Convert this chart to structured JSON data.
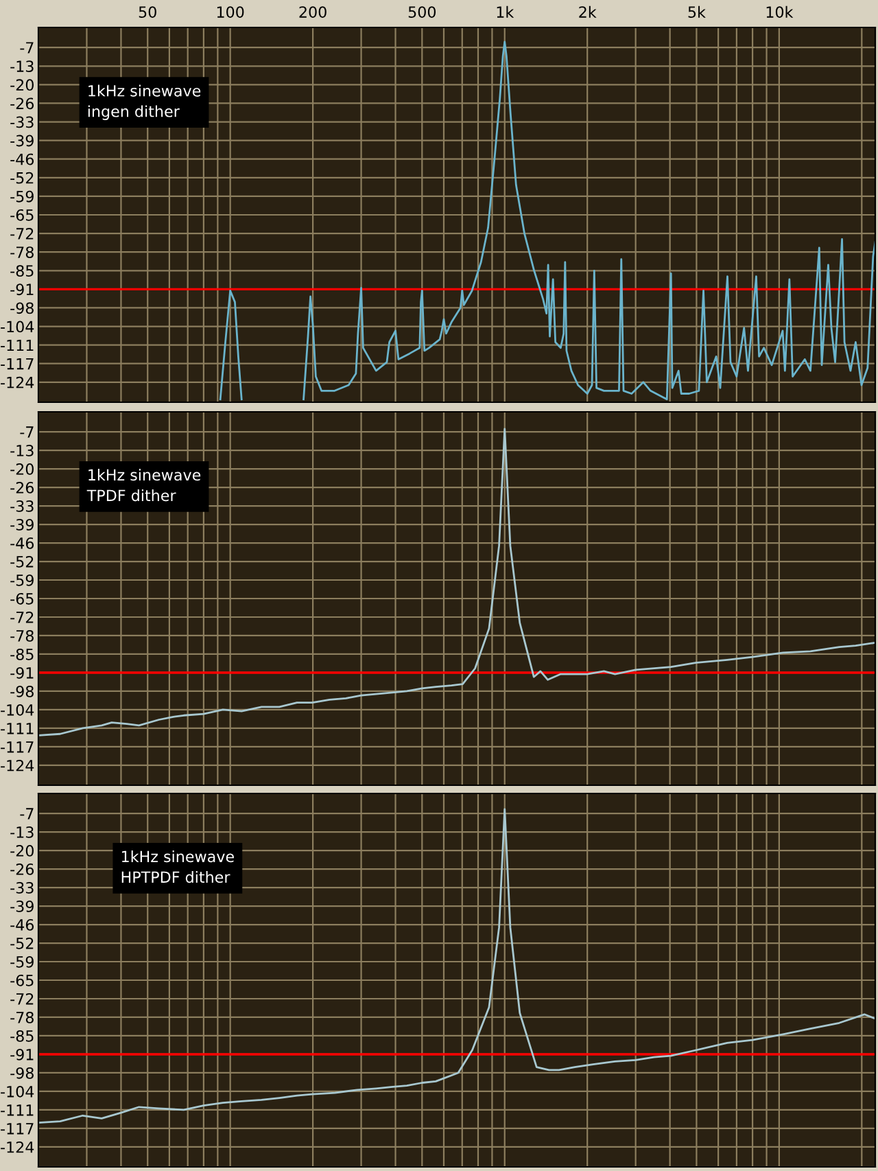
{
  "chart_data": [
    {
      "type": "line",
      "log": "x",
      "grid": true,
      "legend": false,
      "xlim": [
        20,
        22400
      ],
      "ylim": [
        -131,
        0
      ],
      "xticks": [
        {
          "value": 20,
          "label": null
        },
        {
          "value": 30,
          "label": null
        },
        {
          "value": 40,
          "label": null
        },
        50,
        {
          "value": 60,
          "label": null
        },
        {
          "value": 70,
          "label": null
        },
        {
          "value": 80,
          "label": null
        },
        {
          "value": 90,
          "label": null
        },
        100,
        200,
        {
          "value": 300,
          "label": null
        },
        {
          "value": 400,
          "label": null
        },
        500,
        {
          "value": 600,
          "label": null
        },
        {
          "value": 700,
          "label": null
        },
        {
          "value": 800,
          "label": null
        },
        {
          "value": 900,
          "label": null
        },
        {
          "value": 1000,
          "label": "1k"
        },
        {
          "value": 2000,
          "label": "2k"
        },
        {
          "value": 3000,
          "label": null
        },
        {
          "value": 4000,
          "label": null
        },
        {
          "value": 5000,
          "label": "5k"
        },
        {
          "value": 6000,
          "label": null
        },
        {
          "value": 7000,
          "label": null
        },
        {
          "value": 8000,
          "label": null
        },
        {
          "value": 9000,
          "label": null
        },
        {
          "value": 10000,
          "label": "10k"
        },
        {
          "value": 20000,
          "label": null
        }
      ],
      "yticks": [
        -7,
        {
          "value": -13.5,
          "label": "-13"
        },
        -20,
        {
          "value": -26.5,
          "label": "-26"
        },
        -33,
        {
          "value": -39.5,
          "label": "-39"
        },
        -46,
        {
          "value": -52.5,
          "label": "-52"
        },
        -59,
        {
          "value": -65.5,
          "label": "-65"
        },
        -72,
        {
          "value": -78.5,
          "label": "-78"
        },
        -85,
        {
          "value": -91.5,
          "label": "-91"
        },
        -98,
        {
          "value": -104.5,
          "label": "-104"
        },
        -111,
        {
          "value": -117.5,
          "label": "-117"
        },
        -124
      ],
      "ref_lines": [
        {
          "axis": "y",
          "value": -91.5,
          "label": null,
          "color": "#ff0000"
        }
      ],
      "annotations": [
        "1kHz sinewave\ningen dither"
      ],
      "series": [
        {
          "color": "#6ab4cc",
          "x": [
            92,
            96,
            100,
            104,
            107,
            110,
            150,
            185,
            192,
            196,
            200,
            205,
            215,
            240,
            270,
            287,
            292,
            300,
            305,
            340,
            372,
            380,
            400,
            410,
            450,
            490,
            495,
            500,
            510,
            530,
            580,
            590,
            600,
            612,
            640,
            690,
            700,
            710,
            760,
            820,
            870,
            920,
            960,
            985,
            1000,
            1015,
            1050,
            1100,
            1180,
            1280,
            1380,
            1420,
            1440,
            1460,
            1500,
            1530,
            1600,
            1640,
            1660,
            1680,
            1750,
            1850,
            2000,
            2080,
            2120,
            2160,
            2300,
            2610,
            2660,
            2710,
            2900,
            3200,
            3400,
            3900,
            4036,
            4080,
            4300,
            4400,
            4700,
            5100,
            5300,
            5450,
            5900,
            6100,
            6480,
            6650,
            7000,
            7450,
            7700,
            8250,
            8450,
            8800,
            9400,
            10300,
            10500,
            10900,
            11200,
            12400,
            13000,
            14000,
            14300,
            15100,
            15500,
            16000,
            16950,
            17300,
            18200,
            19000,
            19960,
            21000,
            22000,
            22400
          ],
          "values": [
            -130,
            -110,
            -92,
            -96,
            -115,
            -130,
            null,
            -130,
            -108,
            -94,
            -104,
            -122,
            -127,
            -127,
            -125,
            -121,
            -107,
            -91,
            -112,
            -120,
            -117,
            -110,
            -106,
            -116,
            -114,
            -112,
            -96,
            -92,
            -113,
            -112,
            -109,
            -106,
            -102,
            -107,
            -103,
            -98,
            -92,
            -97,
            -92,
            -82,
            -70,
            -45,
            -25,
            -10,
            -5,
            -10,
            -30,
            -55,
            -72,
            -85,
            -95,
            -100,
            -83,
            -108,
            -88,
            -110,
            -112,
            -107,
            -82,
            -113,
            -120,
            -125,
            -128,
            -125,
            -85,
            -126,
            -127,
            -127,
            -81,
            -127,
            -128,
            -124,
            -127,
            -130,
            -86,
            -126,
            -120,
            -128,
            -128,
            -127,
            -92,
            -124,
            -115,
            -126,
            -87,
            -117,
            -122,
            -105,
            -120,
            -87,
            -115,
            -112,
            -118,
            -106,
            -120,
            -88,
            -122,
            -116,
            -120,
            -77,
            -118,
            -83,
            -105,
            -117,
            -74,
            -110,
            -120,
            -110,
            -125,
            -119,
            -80,
            -75
          ]
        }
      ]
    },
    {
      "type": "line",
      "log": "x",
      "grid": true,
      "legend": false,
      "tick_labels": "y",
      "xlim": [
        20,
        22400
      ],
      "ylim": [
        -131,
        0
      ],
      "xticks": [
        {
          "value": 20,
          "label": null
        },
        {
          "value": 30,
          "label": null
        },
        {
          "value": 40,
          "label": null
        },
        {
          "value": 50,
          "label": null
        },
        {
          "value": 60,
          "label": null
        },
        {
          "value": 70,
          "label": null
        },
        {
          "value": 80,
          "label": null
        },
        {
          "value": 90,
          "label": null
        },
        {
          "value": 100,
          "label": null
        },
        {
          "value": 200,
          "label": null
        },
        {
          "value": 300,
          "label": null
        },
        {
          "value": 400,
          "label": null
        },
        {
          "value": 500,
          "label": null
        },
        {
          "value": 600,
          "label": null
        },
        {
          "value": 700,
          "label": null
        },
        {
          "value": 800,
          "label": null
        },
        {
          "value": 900,
          "label": null
        },
        {
          "value": 1000,
          "label": null
        },
        {
          "value": 2000,
          "label": null
        },
        {
          "value": 3000,
          "label": null
        },
        {
          "value": 4000,
          "label": null
        },
        {
          "value": 5000,
          "label": null
        },
        {
          "value": 6000,
          "label": null
        },
        {
          "value": 7000,
          "label": null
        },
        {
          "value": 8000,
          "label": null
        },
        {
          "value": 9000,
          "label": null
        },
        {
          "value": 10000,
          "label": null
        },
        {
          "value": 20000,
          "label": null
        }
      ],
      "yticks": [
        -7,
        {
          "value": -13.5,
          "label": "-13"
        },
        -20,
        {
          "value": -26.5,
          "label": "-26"
        },
        -33,
        {
          "value": -39.5,
          "label": "-39"
        },
        -46,
        {
          "value": -52.5,
          "label": "-52"
        },
        -59,
        {
          "value": -65.5,
          "label": "-65"
        },
        -72,
        {
          "value": -78.5,
          "label": "-78"
        },
        -85,
        {
          "value": -91.5,
          "label": "-91"
        },
        -98,
        {
          "value": -104.5,
          "label": "-104"
        },
        -111,
        {
          "value": -117.5,
          "label": "-117"
        },
        -124
      ],
      "ref_lines": [
        {
          "axis": "y",
          "value": -91.5,
          "label": null,
          "color": "#ff0000"
        }
      ],
      "annotations": [
        "1kHz sinewave\nTPDF dither"
      ],
      "series": [
        {
          "color": "#a8c8d0",
          "x": [
            20,
            24,
            29,
            34,
            37,
            42,
            46.5,
            55,
            62,
            67.7,
            80,
            94,
            110,
            130,
            151,
            175,
            199,
            230,
            264,
            300,
            340,
            385,
            440,
            500,
            561,
            640,
            703,
            780,
            877,
            954,
            1000,
            1048,
            1135,
            1277,
            1350,
            1436,
            1600,
            1996,
            2300,
            2523,
            3000,
            4036,
            5000,
            6466,
            8000,
            10330,
            13000,
            16560,
            19000,
            22400
          ],
          "values": [
            -113.5,
            -113,
            -111,
            -110,
            -109,
            -109.5,
            -110,
            -108,
            -107,
            -106.5,
            -106,
            -104.5,
            -105,
            -103.5,
            -103.5,
            -102,
            -102,
            -101,
            -100.5,
            -99.5,
            -99,
            -98.5,
            -98,
            -97,
            -96.5,
            -96,
            -95.5,
            -90,
            -76,
            -47,
            -6,
            -47,
            -74,
            -93,
            -91,
            -94,
            -92,
            -92,
            -91,
            -92,
            -90.5,
            -89.5,
            -88,
            -87,
            -86,
            -84.5,
            -84,
            -82.5,
            -82,
            -81
          ]
        }
      ]
    },
    {
      "type": "line",
      "log": "x",
      "grid": true,
      "legend": false,
      "tick_labels": "y",
      "xlim": [
        20,
        22400
      ],
      "ylim": [
        -131,
        0
      ],
      "xticks": [
        {
          "value": 20,
          "label": null
        },
        {
          "value": 30,
          "label": null
        },
        {
          "value": 40,
          "label": null
        },
        {
          "value": 50,
          "label": null
        },
        {
          "value": 60,
          "label": null
        },
        {
          "value": 70,
          "label": null
        },
        {
          "value": 80,
          "label": null
        },
        {
          "value": 90,
          "label": null
        },
        {
          "value": 100,
          "label": null
        },
        {
          "value": 200,
          "label": null
        },
        {
          "value": 300,
          "label": null
        },
        {
          "value": 400,
          "label": null
        },
        {
          "value": 500,
          "label": null
        },
        {
          "value": 600,
          "label": null
        },
        {
          "value": 700,
          "label": null
        },
        {
          "value": 800,
          "label": null
        },
        {
          "value": 900,
          "label": null
        },
        {
          "value": 1000,
          "label": null
        },
        {
          "value": 2000,
          "label": null
        },
        {
          "value": 3000,
          "label": null
        },
        {
          "value": 4000,
          "label": null
        },
        {
          "value": 5000,
          "label": null
        },
        {
          "value": 6000,
          "label": null
        },
        {
          "value": 7000,
          "label": null
        },
        {
          "value": 8000,
          "label": null
        },
        {
          "value": 9000,
          "label": null
        },
        {
          "value": 10000,
          "label": null
        },
        {
          "value": 20000,
          "label": null
        }
      ],
      "yticks": [
        -7,
        {
          "value": -13.5,
          "label": "-13"
        },
        -20,
        {
          "value": -26.5,
          "label": "-26"
        },
        -33,
        {
          "value": -39.5,
          "label": "-39"
        },
        -46,
        {
          "value": -52.5,
          "label": "-52"
        },
        -59,
        {
          "value": -65.5,
          "label": "-65"
        },
        -72,
        {
          "value": -78.5,
          "label": "-78"
        },
        -85,
        {
          "value": -91.5,
          "label": "-91"
        },
        -98,
        {
          "value": -104.5,
          "label": "-104"
        },
        -111,
        {
          "value": -117.5,
          "label": "-117"
        },
        -124
      ],
      "ref_lines": [
        {
          "axis": "y",
          "value": -91.5,
          "label": null,
          "color": "#ff0000"
        }
      ],
      "annotations": [
        "1kHz sinewave\nHPTPDF dither"
      ],
      "series": [
        {
          "color": "#a8c8d0",
          "x": [
            20,
            24,
            29,
            34,
            40,
            46.5,
            55,
            67.7,
            80,
            94,
            110,
            130,
            151,
            175,
            199,
            241,
            290,
            340,
            385,
            440,
            500,
            561,
            677,
            762,
            877,
            954,
            1000,
            1048,
            1135,
            1307,
            1450,
            1577,
            1800,
            2100,
            2523,
            3000,
            3500,
            4036,
            5000,
            6466,
            8000,
            10330,
            13000,
            16560,
            20450,
            22400
          ],
          "values": [
            -115.5,
            -115,
            -113,
            -114,
            -112,
            -110,
            -110.5,
            -111,
            -109.5,
            -108.5,
            -108,
            -107.5,
            -106.8,
            -106,
            -105.5,
            -105,
            -104,
            -103.5,
            -103,
            -102.5,
            -101.5,
            -101,
            -98,
            -90,
            -75,
            -47,
            -5.5,
            -47,
            -77,
            -96,
            -97,
            -97,
            -96,
            -95,
            -94,
            -93.5,
            -92.5,
            -92,
            -90,
            -87.5,
            -86.5,
            -84.5,
            -82.5,
            -80.5,
            -77.5,
            -79
          ]
        }
      ]
    }
  ]
}
